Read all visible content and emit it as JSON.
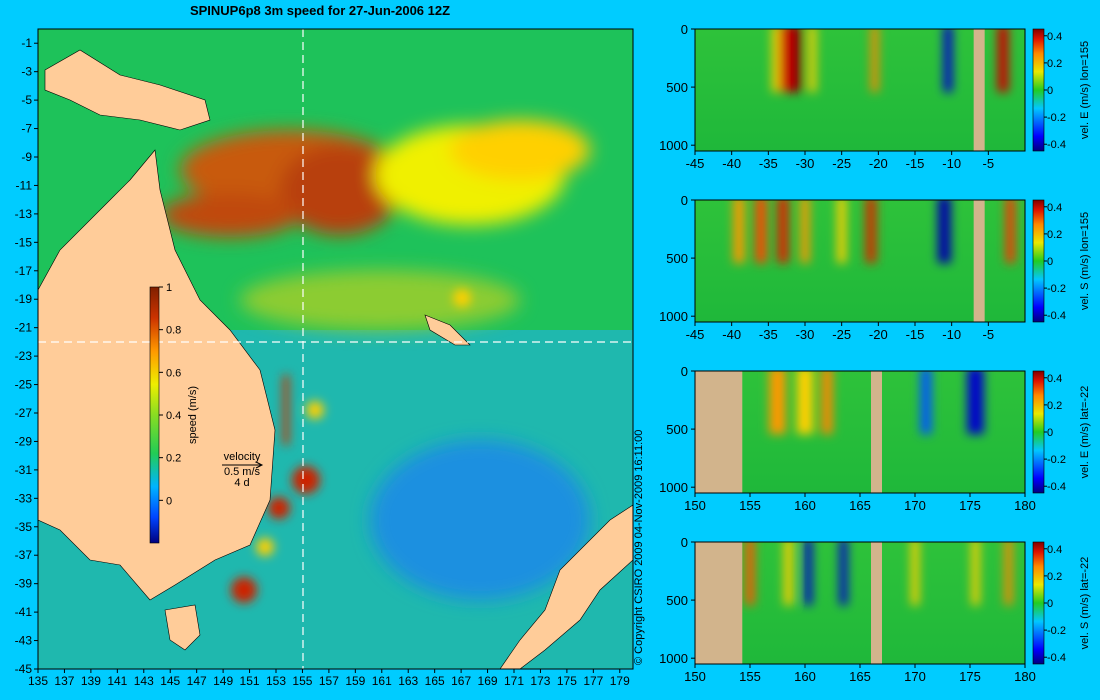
{
  "title": "SPINUP6p8 3m speed for 27-Jun-2006 12Z",
  "copyright": "© Copyright CSIRO 2009   04-Nov-2009 16:11:00",
  "colors": {
    "background": "#00ccff",
    "land": "#ffcc99",
    "section_land": "#d2b48c"
  },
  "chart_data": [
    {
      "type": "heatmap",
      "title": "SPINUP6p8 3m speed for 27-Jun-2006 12Z",
      "xlabel": "",
      "ylabel": "",
      "x_ticks": [
        "135",
        "137",
        "139",
        "141",
        "143",
        "145",
        "147",
        "149",
        "151",
        "153",
        "155",
        "157",
        "159",
        "161",
        "163",
        "165",
        "167",
        "169",
        "171",
        "173",
        "175",
        "177",
        "179"
      ],
      "y_ticks": [
        "-1",
        "-3",
        "-5",
        "-7",
        "-9",
        "-11",
        "-13",
        "-15",
        "-17",
        "-19",
        "-21",
        "-23",
        "-25",
        "-27",
        "-29",
        "-31",
        "-33",
        "-35",
        "-37",
        "-39",
        "-41",
        "-43",
        "-45"
      ],
      "xlim": [
        135,
        180
      ],
      "ylim": [
        -45,
        0
      ],
      "section_lines": [
        {
          "orientation": "vertical",
          "lon": 155
        },
        {
          "orientation": "horizontal",
          "lat": -22
        }
      ],
      "colorbar": {
        "label": "speed (m/s)",
        "range": [
          -0.2,
          1
        ],
        "ticks": [
          "1",
          "0.8",
          "0.6",
          "0.4",
          "0.2",
          "0"
        ],
        "placement": "inset-left"
      },
      "velocity_key": {
        "title": "velocity",
        "scale": "0.5 m/s",
        "duration": "4 d"
      }
    },
    {
      "type": "heatmap",
      "ylabel": "vel. E (m/s) lon=155",
      "x_ticks": [
        "-45",
        "-40",
        "-35",
        "-30",
        "-25",
        "-20",
        "-15",
        "-10",
        "-5"
      ],
      "y_ticks": [
        "0",
        "500",
        "1000"
      ],
      "xlim": [
        -45,
        0
      ],
      "ylim": [
        1050,
        0
      ],
      "colorbar": {
        "ticks": [
          "0.4",
          "0.2",
          "0",
          "-0.2",
          "-0.4"
        ],
        "range": [
          -0.45,
          0.45
        ]
      }
    },
    {
      "type": "heatmap",
      "ylabel": "vel. S (m/s) lon=155",
      "x_ticks": [
        "-45",
        "-40",
        "-35",
        "-30",
        "-25",
        "-20",
        "-15",
        "-10",
        "-5"
      ],
      "y_ticks": [
        "0",
        "500",
        "1000"
      ],
      "xlim": [
        -45,
        0
      ],
      "ylim": [
        1050,
        0
      ],
      "colorbar": {
        "ticks": [
          "0.4",
          "0.2",
          "0",
          "-0.2",
          "-0.4"
        ],
        "range": [
          -0.45,
          0.45
        ]
      }
    },
    {
      "type": "heatmap",
      "ylabel": "vel. E (m/s) lat=-22",
      "x_ticks": [
        "150",
        "155",
        "160",
        "165",
        "170",
        "175",
        "180"
      ],
      "y_ticks": [
        "0",
        "500",
        "1000"
      ],
      "xlim": [
        150,
        180
      ],
      "ylim": [
        1050,
        0
      ],
      "colorbar": {
        "ticks": [
          "0.4",
          "0.2",
          "0",
          "-0.2",
          "-0.4"
        ],
        "range": [
          -0.45,
          0.45
        ]
      }
    },
    {
      "type": "heatmap",
      "ylabel": "vel. S (m/s) lat=-22",
      "x_ticks": [
        "150",
        "155",
        "160",
        "165",
        "170",
        "175",
        "180"
      ],
      "y_ticks": [
        "0",
        "500",
        "1000"
      ],
      "xlim": [
        150,
        180
      ],
      "ylim": [
        1050,
        0
      ],
      "colorbar": {
        "ticks": [
          "0.4",
          "0.2",
          "0",
          "-0.2",
          "-0.4"
        ],
        "range": [
          -0.45,
          0.45
        ]
      }
    }
  ]
}
